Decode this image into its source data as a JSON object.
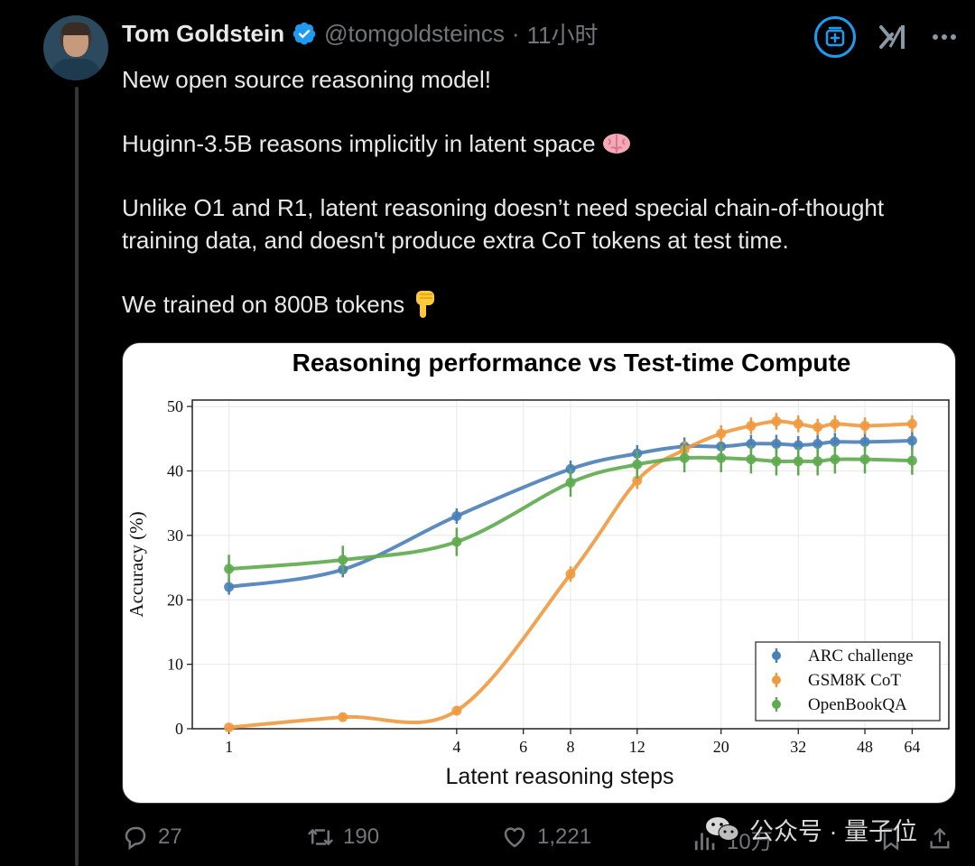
{
  "tweet": {
    "author_name": "Tom Goldstein",
    "handle": "@tomgoldsteincs",
    "separator": "·",
    "time": "11小时",
    "paragraphs": [
      "New open source reasoning model!",
      "Huginn-3.5B reasons implicitly in latent space",
      "Unlike O1 and R1, latent reasoning doesn’t need special chain-of-thought training data, and doesn't produce extra CoT tokens at test time.",
      "We trained on 800B tokens"
    ],
    "emojis": [
      "brain-emoji",
      "pointing-down-emoji"
    ]
  },
  "actions": {
    "replies": "27",
    "reposts": "190",
    "likes": "1,221",
    "views": "10万"
  },
  "watermark": {
    "text": "公众号 · 量子位"
  },
  "chart_data": {
    "type": "line",
    "title": "Reasoning performance vs Test-time Compute",
    "xlabel": "Latent reasoning steps",
    "ylabel": "Accuracy (%)",
    "x_scale": "log",
    "xticks": [
      1,
      4,
      6,
      8,
      12,
      20,
      32,
      48,
      64
    ],
    "yticks": [
      0,
      10,
      20,
      30,
      40,
      50
    ],
    "xlim": [
      0.8,
      80
    ],
    "ylim": [
      0,
      51
    ],
    "grid": true,
    "legend_position": "bottom-right",
    "x": [
      1,
      2,
      4,
      8,
      12,
      16,
      20,
      24,
      28,
      32,
      36,
      40,
      48,
      64
    ],
    "series": [
      {
        "name": "ARC challenge",
        "color": "#4a7fb8",
        "values": [
          22,
          24.7,
          33,
          40.3,
          42.7,
          43.8,
          43.8,
          44.2,
          44.2,
          44,
          44.2,
          44.5,
          44.5,
          44.7
        ],
        "err": [
          1.2,
          1.2,
          1.2,
          1.3,
          1.3,
          1.4,
          1.4,
          1.4,
          1.4,
          1.4,
          1.4,
          1.4,
          1.4,
          1.4
        ]
      },
      {
        "name": "GSM8K CoT",
        "color": "#f0993f",
        "values": [
          0.2,
          1.8,
          2.8,
          24,
          38.5,
          43.3,
          45.8,
          47,
          47.7,
          47.3,
          46.8,
          47.3,
          47,
          47.3
        ],
        "err": [
          0.4,
          0.6,
          0.7,
          1.2,
          1.3,
          1.3,
          1.3,
          1.3,
          1.3,
          1.3,
          1.3,
          1.3,
          1.3,
          1.3
        ]
      },
      {
        "name": "OpenBookQA",
        "color": "#5eaa4f",
        "values": [
          24.8,
          26.2,
          29,
          38.2,
          41,
          42,
          42,
          41.8,
          41.5,
          41.5,
          41.5,
          41.8,
          41.8,
          41.6
        ],
        "err": [
          2.2,
          2.2,
          2.2,
          2.2,
          2.2,
          2.2,
          2.2,
          2.2,
          2.2,
          2.2,
          2.2,
          2.2,
          2.2,
          2.2
        ]
      }
    ]
  }
}
